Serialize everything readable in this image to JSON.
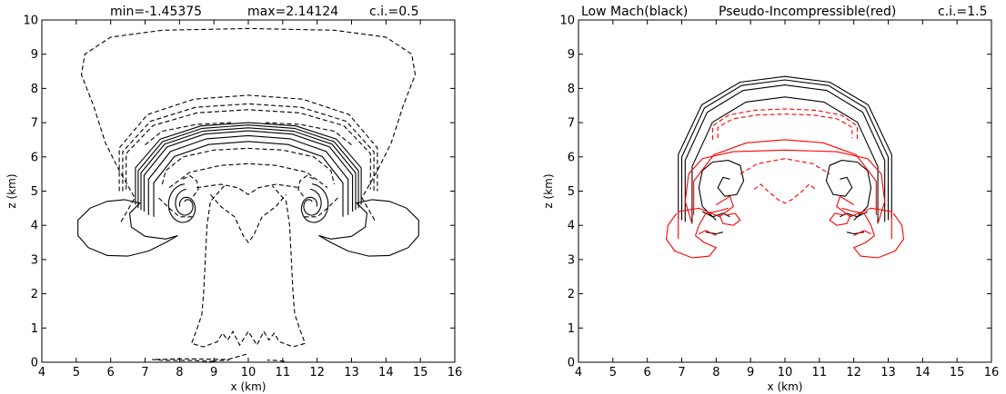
{
  "chart_data": [
    {
      "type": "contour",
      "title_parts": [
        "min=-1.45375",
        "max=2.14124",
        "c.i.=0.5"
      ],
      "xlabel": "x (km)",
      "ylabel": "z (km)",
      "xlim": [
        4,
        16
      ],
      "ylim": [
        0,
        10
      ],
      "xticks": [
        "4",
        "5",
        "6",
        "7",
        "8",
        "9",
        "10",
        "11",
        "12",
        "13",
        "14",
        "15",
        "16"
      ],
      "yticks": [
        "0",
        "1",
        "2",
        "3",
        "4",
        "5",
        "6",
        "7",
        "8",
        "9",
        "10"
      ],
      "field_min": -1.45375,
      "field_max": 2.14124,
      "contour_interval": 0.5,
      "series": [
        {
          "color": "#000000"
        }
      ]
    },
    {
      "type": "contour",
      "title_parts": [
        "Low Mach(black)",
        "Pseudo-Incompressible(red)",
        "c.i.=1.5"
      ],
      "xlabel": "x (km)",
      "ylabel": "z (km)",
      "xlim": [
        4,
        16
      ],
      "ylim": [
        0,
        10
      ],
      "xticks": [
        "4",
        "5",
        "6",
        "7",
        "8",
        "9",
        "10",
        "11",
        "12",
        "13",
        "14",
        "15",
        "16"
      ],
      "yticks": [
        "0",
        "1",
        "2",
        "3",
        "4",
        "5",
        "6",
        "7",
        "8",
        "9",
        "10"
      ],
      "contour_interval": 1.5,
      "series": [
        {
          "color": "#000000"
        },
        {
          "color": "#ff0000"
        }
      ]
    }
  ]
}
